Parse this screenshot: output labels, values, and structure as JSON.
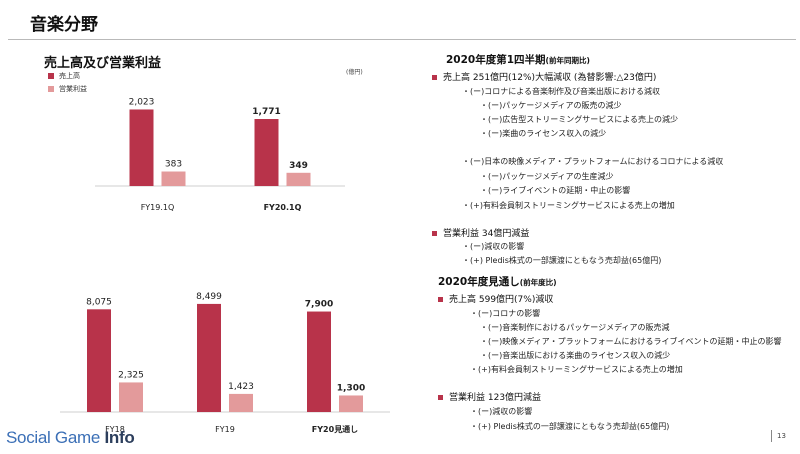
{
  "header": {
    "title": "音楽分野"
  },
  "section": {
    "title": "売上高及び営業利益"
  },
  "legend": {
    "sales": "売上高",
    "profit": "営業利益"
  },
  "unit": "(億円)",
  "colors": {
    "sales": "#b8334a",
    "profit": "#e39a9b",
    "accent": "#b8334a"
  },
  "chart_data": [
    {
      "type": "bar",
      "categories": [
        "FY19.1Q",
        "FY20.1Q"
      ],
      "series": [
        {
          "name": "売上高",
          "values": [
            2023,
            1771
          ]
        },
        {
          "name": "営業利益",
          "values": [
            383,
            349
          ]
        }
      ],
      "data_labels": [
        [
          "2,023",
          "1,771"
        ],
        [
          "383",
          "349"
        ]
      ],
      "bold_categories": [
        "FY20.1Q"
      ],
      "ylim": [
        0,
        2300
      ],
      "legend_position": "top-left"
    },
    {
      "type": "bar",
      "categories": [
        "FY18",
        "FY19",
        "FY20見通し"
      ],
      "series": [
        {
          "name": "売上高",
          "values": [
            8075,
            8499,
            7900
          ]
        },
        {
          "name": "営業利益",
          "values": [
            2325,
            1423,
            1300
          ]
        }
      ],
      "data_labels": [
        [
          "8,075",
          "8,499",
          "7,900"
        ],
        [
          "2,325",
          "1,423",
          "1,300"
        ]
      ],
      "bold_categories": [
        "FY20見通し"
      ],
      "ylim": [
        0,
        9200
      ]
    }
  ],
  "right_panel": {
    "q1_heading": "2020年度第1四半期",
    "q1_heading_note": "(前年同期比)",
    "q1_sales": "売上高 251億円(12%)大幅減収 (為替影響:△23億円)",
    "q1_sales_lines": [
      "・(ー)コロナによる音楽制作及び音楽出版における減収",
      "・(ー)パッケージメディアの販売の減少",
      "・(ー)広告型ストリーミングサービスによる売上の減少",
      "・(ー)楽曲のライセンス収入の減少",
      "・(ー)日本の映像メディア・プラットフォームにおけるコロナによる減収",
      "・(ー)パッケージメディアの生産減少",
      "・(ー)ライブイベントの延期・中止の影響",
      "・(+)有料会員制ストリーミングサービスによる売上の増加"
    ],
    "q1_profit": "営業利益 34億円減益",
    "q1_profit_lines": [
      "・(ー)減収の影響",
      "・(+) Pledis株式の一部譲渡にともなう売却益(65億円)"
    ],
    "fy_heading": "2020年度見通し",
    "fy_heading_note": "(前年度比)",
    "fy_sales": "売上高 599億円(7%)減収",
    "fy_sales_lines": [
      "・(ー)コロナの影響",
      "・(ー)音楽制作におけるパッケージメディアの販売減",
      "・(ー)映像メディア・プラットフォームにおけるライブイベントの延期・中止の影響",
      "・(ー)音楽出版における楽曲のライセンス収入の減少",
      "・(+)有料会員制ストリーミングサービスによる売上の増加"
    ],
    "fy_profit": "営業利益 123億円減益",
    "fy_profit_lines": [
      "・(ー)減収の影響",
      "・(+) Pledis株式の一部譲渡にともなう売却益(65億円)"
    ]
  },
  "footer": {
    "watermark_main": "Social Game ",
    "watermark_info": "Info",
    "page_number": "13"
  }
}
